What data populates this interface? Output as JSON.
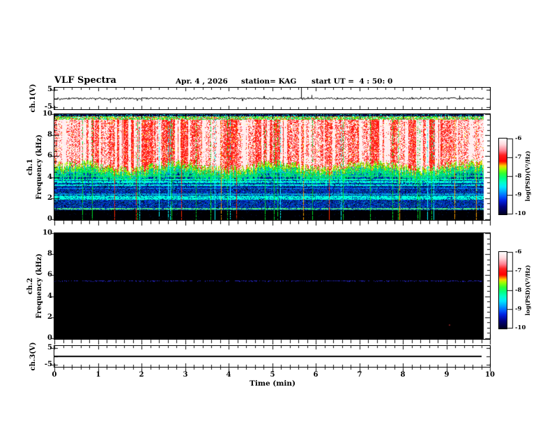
{
  "header": {
    "title": "VLF Spectra",
    "date": "Apr. 4 , 2026",
    "station": "station= KAG",
    "start_ut": "start UT =  4 : 50: 0"
  },
  "x_axis": {
    "title": "Time (min)",
    "tick_labels": [
      "0",
      "1",
      "2",
      "3",
      "4",
      "5",
      "6",
      "7",
      "8",
      "9",
      "10"
    ],
    "tick_values": [
      0,
      1,
      2,
      3,
      4,
      5,
      6,
      7,
      8,
      9,
      10
    ],
    "minor_ticks_per_major": 5,
    "range_min": [
      0,
      10
    ]
  },
  "panels": {
    "ch1_voltage": {
      "axis_label": "ch.1(V)",
      "tick_labels": [
        "5",
        "-5"
      ],
      "tick_values": [
        5,
        -5
      ],
      "range_v": [
        -5,
        5
      ]
    },
    "ch1_spectrogram": {
      "axis_label_ch": "ch.1",
      "axis_label_freq": "Frequency (kHz)",
      "tick_labels": [
        "10",
        "8",
        "6",
        "4",
        "2",
        "0"
      ],
      "tick_values": [
        10,
        8,
        6,
        4,
        2,
        0
      ],
      "range_khz": [
        0,
        10
      ]
    },
    "ch2_spectrogram": {
      "axis_label_ch": "ch.2",
      "axis_label_freq": "Frequency (kHz)",
      "tick_labels": [
        "10",
        "8",
        "6",
        "4",
        "2",
        "0"
      ],
      "tick_values": [
        10,
        8,
        6,
        4,
        2,
        0
      ],
      "range_khz": [
        0,
        10
      ]
    },
    "ch3_voltage": {
      "axis_label": "ch.3(V)",
      "tick_labels": [
        "5",
        "-5"
      ],
      "tick_values": [
        5,
        -5
      ],
      "range_v": [
        -5,
        5
      ]
    }
  },
  "colorbars": [
    {
      "label": "log(PSD)(V²/Hz)",
      "tick_labels": [
        "-6",
        "-7",
        "-8",
        "-9",
        "-10"
      ],
      "tick_values": [
        -6,
        -7,
        -8,
        -9,
        -10
      ],
      "gradient_stops": [
        [
          0,
          "#ffffff"
        ],
        [
          0.08,
          "#ffd8dc"
        ],
        [
          0.16,
          "#ff8090"
        ],
        [
          0.22,
          "#ff2020"
        ],
        [
          0.3,
          "#ff0000"
        ],
        [
          0.36,
          "#ffd000"
        ],
        [
          0.4,
          "#a0ff00"
        ],
        [
          0.46,
          "#30ff30"
        ],
        [
          0.52,
          "#00ff80"
        ],
        [
          0.58,
          "#00ffc8"
        ],
        [
          0.64,
          "#00e8ff"
        ],
        [
          0.7,
          "#00a8ff"
        ],
        [
          0.76,
          "#0060ff"
        ],
        [
          0.82,
          "#0020e0"
        ],
        [
          0.9,
          "#000080"
        ],
        [
          1,
          "#000020"
        ]
      ]
    },
    {
      "label": "log(PSD)(V²/Hz)",
      "tick_labels": [
        "-6",
        "-7",
        "-8",
        "-9",
        "-10"
      ],
      "tick_values": [
        -6,
        -7,
        -8,
        -9,
        -10
      ],
      "gradient_stops": [
        [
          0,
          "#ffffff"
        ],
        [
          0.08,
          "#ffd8dc"
        ],
        [
          0.16,
          "#ff8090"
        ],
        [
          0.22,
          "#ff2020"
        ],
        [
          0.3,
          "#ff0000"
        ],
        [
          0.36,
          "#ffd000"
        ],
        [
          0.4,
          "#a0ff00"
        ],
        [
          0.46,
          "#30ff30"
        ],
        [
          0.52,
          "#00ff80"
        ],
        [
          0.58,
          "#00ffc8"
        ],
        [
          0.64,
          "#00e8ff"
        ],
        [
          0.7,
          "#00a8ff"
        ],
        [
          0.76,
          "#0060ff"
        ],
        [
          0.82,
          "#0020e0"
        ],
        [
          0.9,
          "#000080"
        ],
        [
          1,
          "#000020"
        ]
      ]
    }
  ],
  "chart_data": [
    {
      "panel": "ch1_voltage",
      "type": "line",
      "x_range_min": [
        0,
        10
      ],
      "y_range_v": [
        -5,
        5
      ],
      "data_end_min": 9.85,
      "baseline_v": 0,
      "noise_amplitude_v": 0.4,
      "spikes": [
        {
          "t_min": 1.28,
          "amp_v": -2.0
        },
        {
          "t_min": 2.0,
          "amp_v": -1.2
        },
        {
          "t_min": 5.66,
          "amp_v": 5.0
        },
        {
          "t_min": 5.9,
          "amp_v": 1.6
        },
        {
          "t_min": 9.3,
          "amp_v": 1.3
        }
      ]
    },
    {
      "panel": "ch1_spectrogram",
      "type": "heatmap",
      "x_range_min": [
        0,
        10
      ],
      "y_range_khz": [
        0,
        10
      ],
      "value_range_log_psd": [
        -10,
        -6
      ],
      "data_end_min": 9.85,
      "zones": [
        {
          "f_khz": [
            9.8,
            10
          ],
          "description": "dark blue-black speckle band at top edge",
          "level_log_psd": -9.8
        },
        {
          "f_khz": [
            9.45,
            9.8
          ],
          "description": "green-yellow-cyan fringe",
          "level_log_psd": -8
        },
        {
          "f_khz": [
            5.0,
            9.45
          ],
          "description": "intense red with white vertical dropout streaks",
          "level_log_psd": -6.8
        },
        {
          "f_khz": [
            4.2,
            5.0
          ],
          "description": "jagged yellow-green transition boundary",
          "level_log_psd": -8
        },
        {
          "f_khz": [
            0.95,
            4.2
          ],
          "description": "blue speckle with cyan horizontal bands",
          "level_log_psd": -9.3
        },
        {
          "f_khz": [
            0,
            0.95
          ],
          "description": "black band, no signal",
          "level_log_psd": -10
        }
      ],
      "horizontal_bands_khz": [
        {
          "f": 1.05,
          "halfwidth": 0.08,
          "color": "#50ff80"
        },
        {
          "f": 2.0,
          "halfwidth": 0.09,
          "color": "#00ffdc"
        },
        {
          "f": 2.2,
          "halfwidth": 0.07,
          "color": "#00ffdc"
        },
        {
          "f": 2.45,
          "halfwidth": 0.05,
          "color": "#00b4dc"
        },
        {
          "f": 3.0,
          "halfwidth": 0.05,
          "color": "#00a0ff"
        },
        {
          "f": 3.3,
          "halfwidth": 0.06,
          "color": "#00ffdc"
        },
        {
          "f": 3.6,
          "halfwidth": 0.09,
          "color": "#00ffdc"
        },
        {
          "f": 3.8,
          "halfwidth": 0.06,
          "color": "#00ffb4"
        },
        {
          "f": 4.15,
          "halfwidth": 0.05,
          "color": "#00e678"
        }
      ],
      "vertical_event_lines": {
        "count": 38,
        "colors": [
          "#00dc28",
          "#ff2800",
          "#00ffff",
          "#ffa000"
        ]
      },
      "white_gap_streaks": 55
    },
    {
      "panel": "ch2_spectrogram",
      "type": "heatmap",
      "x_range_min": [
        0,
        10
      ],
      "y_range_khz": [
        0,
        10
      ],
      "value_range_log_psd": [
        -10,
        -6
      ],
      "data_end_min": 9.85,
      "background_level_log_psd": -10,
      "horizontal_line": {
        "f_khz": 5.5,
        "color": "#2323be",
        "style": "faint dashed"
      },
      "faint_dot": {
        "t_min": 9.05,
        "f_khz": 1.4,
        "color": "#781e1e"
      }
    },
    {
      "panel": "ch3_voltage",
      "type": "line",
      "x_range_min": [
        0,
        10
      ],
      "y_range_v": [
        -5,
        5
      ],
      "data_end_min": 9.8,
      "constant_v": 0
    }
  ],
  "colors": {
    "frame": "#000000",
    "background": "#ffffff",
    "text": "#000000",
    "spec2_background": "#000000"
  }
}
